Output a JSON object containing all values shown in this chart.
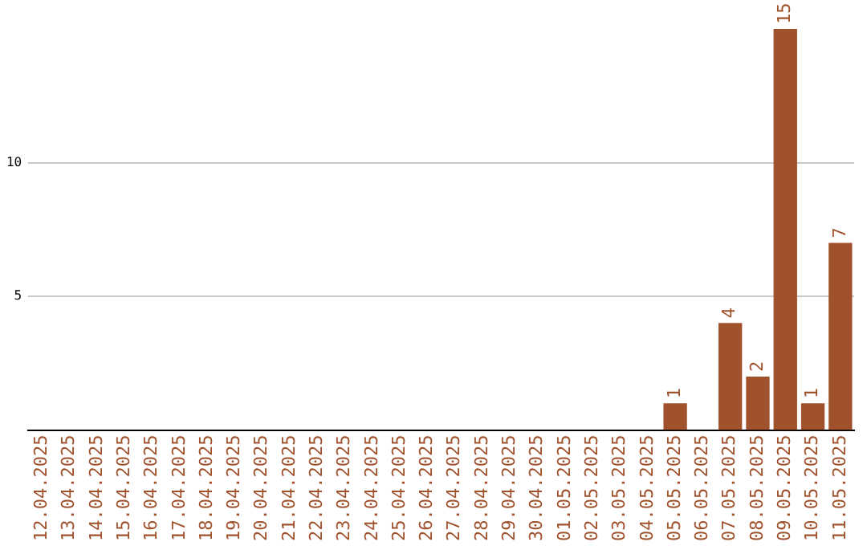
{
  "chart_data": {
    "type": "bar",
    "categories": [
      "12.04.2025",
      "13.04.2025",
      "14.04.2025",
      "15.04.2025",
      "16.04.2025",
      "17.04.2025",
      "18.04.2025",
      "19.04.2025",
      "20.04.2025",
      "21.04.2025",
      "22.04.2025",
      "23.04.2025",
      "24.04.2025",
      "25.04.2025",
      "26.04.2025",
      "27.04.2025",
      "28.04.2025",
      "29.04.2025",
      "30.04.2025",
      "01.05.2025",
      "02.05.2025",
      "03.05.2025",
      "04.05.2025",
      "05.05.2025",
      "06.05.2025",
      "07.05.2025",
      "08.05.2025",
      "09.05.2025",
      "10.05.2025",
      "11.05.2025"
    ],
    "values": [
      0,
      0,
      0,
      0,
      0,
      0,
      0,
      0,
      0,
      0,
      0,
      0,
      0,
      0,
      0,
      0,
      0,
      0,
      0,
      0,
      0,
      0,
      0,
      1,
      0,
      4,
      2,
      15,
      1,
      7
    ],
    "value_labels": [
      null,
      null,
      null,
      null,
      null,
      null,
      null,
      null,
      null,
      null,
      null,
      null,
      null,
      null,
      null,
      null,
      null,
      null,
      null,
      null,
      null,
      null,
      null,
      "1",
      null,
      "4",
      "2",
      "15",
      "1",
      "7"
    ],
    "color": "#a0522d",
    "ylim": [
      0,
      15
    ],
    "yticks": [
      5,
      10
    ],
    "grid": "y"
  }
}
